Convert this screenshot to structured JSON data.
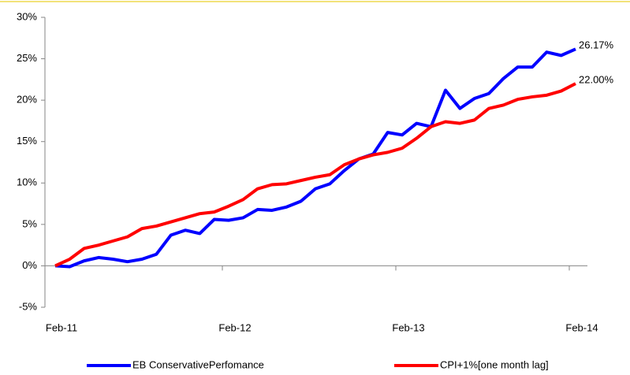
{
  "chart_data": {
    "type": "line",
    "categories": [
      "Feb-11",
      null,
      null,
      null,
      null,
      null,
      null,
      null,
      null,
      null,
      null,
      null,
      "Feb-12",
      null,
      null,
      null,
      null,
      null,
      null,
      null,
      null,
      null,
      null,
      null,
      "Feb-13",
      null,
      null,
      null,
      null,
      null,
      null,
      null,
      null,
      null,
      null,
      null,
      "Feb-14"
    ],
    "series": [
      {
        "name": "EB ConservativePerfomance",
        "color": "#0000ff",
        "values": [
          0,
          -0.1,
          0.6,
          1.0,
          0.8,
          0.5,
          0.8,
          1.4,
          3.7,
          4.3,
          3.9,
          5.6,
          5.5,
          5.8,
          6.8,
          6.7,
          7.1,
          7.8,
          9.3,
          9.9,
          11.5,
          12.9,
          13.5,
          16.1,
          15.8,
          17.2,
          16.8,
          21.2,
          19.0,
          20.2,
          20.8,
          22.6,
          24.0,
          24.0,
          25.8,
          25.4,
          26.17
        ],
        "value_labels": [
          null,
          null,
          null,
          null,
          null,
          null,
          null,
          null,
          null,
          null,
          null,
          null,
          null,
          null,
          null,
          null,
          null,
          null,
          null,
          null,
          null,
          null,
          null,
          null,
          null,
          null,
          null,
          null,
          null,
          null,
          null,
          null,
          null,
          null,
          null,
          null,
          "26.17%"
        ]
      },
      {
        "name": "CPI+1%[one month lag]",
        "color": "#ff0000",
        "values": [
          0,
          0.8,
          2.1,
          2.5,
          3.0,
          3.5,
          4.5,
          4.8,
          5.3,
          5.8,
          6.3,
          6.5,
          7.2,
          8.0,
          9.3,
          9.8,
          9.9,
          10.3,
          10.7,
          11.0,
          12.2,
          12.9,
          13.4,
          13.7,
          14.2,
          15.4,
          16.8,
          17.4,
          17.2,
          17.6,
          19.0,
          19.4,
          20.1,
          20.4,
          20.6,
          21.1,
          22.0
        ],
        "value_labels": [
          null,
          null,
          null,
          null,
          null,
          null,
          null,
          null,
          null,
          null,
          null,
          null,
          null,
          null,
          null,
          null,
          null,
          null,
          null,
          null,
          null,
          null,
          null,
          null,
          null,
          null,
          null,
          null,
          null,
          null,
          null,
          null,
          null,
          null,
          null,
          null,
          "22.00%"
        ]
      }
    ],
    "ylim": [
      -5,
      30
    ],
    "yticks": [
      {
        "value": -5,
        "label": "-5%"
      },
      {
        "value": 0,
        "label": "0%"
      },
      {
        "value": 5,
        "label": "5%"
      },
      {
        "value": 10,
        "label": "10%"
      },
      {
        "value": 15,
        "label": "15%"
      },
      {
        "value": 20,
        "label": "20%"
      },
      {
        "value": 25,
        "label": "25%"
      },
      {
        "value": 30,
        "label": "30%"
      }
    ],
    "grid": false,
    "legend": "bottom"
  }
}
